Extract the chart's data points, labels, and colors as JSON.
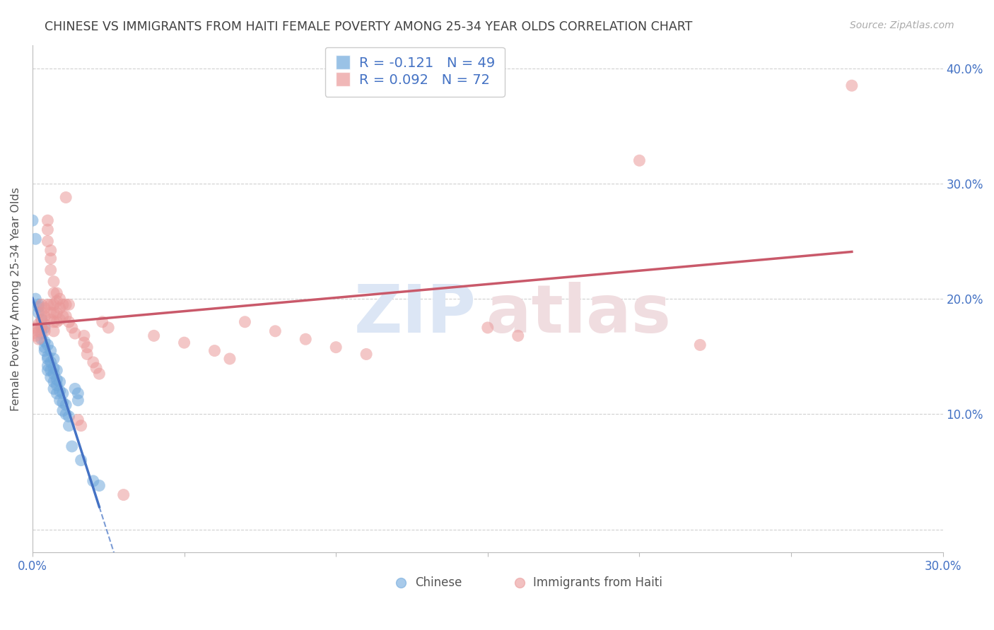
{
  "title": "CHINESE VS IMMIGRANTS FROM HAITI FEMALE POVERTY AMONG 25-34 YEAR OLDS CORRELATION CHART",
  "source": "Source: ZipAtlas.com",
  "ylabel": "Female Poverty Among 25-34 Year Olds",
  "xlim": [
    0.0,
    0.3
  ],
  "ylim": [
    -0.02,
    0.42
  ],
  "ytick_positions": [
    0.0,
    0.1,
    0.2,
    0.3,
    0.4
  ],
  "xtick_positions": [
    0.0,
    0.05,
    0.1,
    0.15,
    0.2,
    0.25,
    0.3
  ],
  "chinese_color": "#6fa8dc",
  "haiti_color": "#ea9999",
  "chinese_R": -0.121,
  "chinese_N": 49,
  "haiti_R": 0.092,
  "haiti_N": 72,
  "watermark_zip": "ZIP",
  "watermark_atlas": "atlas",
  "regression_chinese_color": "#4472c4",
  "regression_haiti_color": "#c9596a",
  "bg_color": "#ffffff",
  "grid_color": "#d0d0d0",
  "title_color": "#404040",
  "axis_label_color": "#555555",
  "blue_color": "#4472c4",
  "legend_border_color": "#cccccc",
  "chinese_points": [
    [
      0.0,
      0.268
    ],
    [
      0.001,
      0.252
    ],
    [
      0.001,
      0.2
    ],
    [
      0.002,
      0.195
    ],
    [
      0.002,
      0.193
    ],
    [
      0.002,
      0.188
    ],
    [
      0.003,
      0.182
    ],
    [
      0.003,
      0.175
    ],
    [
      0.003,
      0.17
    ],
    [
      0.003,
      0.165
    ],
    [
      0.004,
      0.175
    ],
    [
      0.004,
      0.163
    ],
    [
      0.004,
      0.158
    ],
    [
      0.004,
      0.155
    ],
    [
      0.005,
      0.16
    ],
    [
      0.005,
      0.15
    ],
    [
      0.005,
      0.148
    ],
    [
      0.005,
      0.142
    ],
    [
      0.005,
      0.138
    ],
    [
      0.006,
      0.155
    ],
    [
      0.006,
      0.145
    ],
    [
      0.006,
      0.138
    ],
    [
      0.006,
      0.132
    ],
    [
      0.007,
      0.148
    ],
    [
      0.007,
      0.14
    ],
    [
      0.007,
      0.135
    ],
    [
      0.007,
      0.128
    ],
    [
      0.007,
      0.122
    ],
    [
      0.008,
      0.138
    ],
    [
      0.008,
      0.13
    ],
    [
      0.008,
      0.125
    ],
    [
      0.008,
      0.118
    ],
    [
      0.009,
      0.128
    ],
    [
      0.009,
      0.12
    ],
    [
      0.009,
      0.112
    ],
    [
      0.01,
      0.118
    ],
    [
      0.01,
      0.11
    ],
    [
      0.01,
      0.103
    ],
    [
      0.011,
      0.108
    ],
    [
      0.011,
      0.1
    ],
    [
      0.012,
      0.098
    ],
    [
      0.012,
      0.09
    ],
    [
      0.013,
      0.072
    ],
    [
      0.014,
      0.122
    ],
    [
      0.015,
      0.118
    ],
    [
      0.015,
      0.112
    ],
    [
      0.016,
      0.06
    ],
    [
      0.02,
      0.042
    ],
    [
      0.022,
      0.038
    ]
  ],
  "haiti_points": [
    [
      0.0,
      0.17
    ],
    [
      0.001,
      0.175
    ],
    [
      0.001,
      0.168
    ],
    [
      0.002,
      0.178
    ],
    [
      0.002,
      0.172
    ],
    [
      0.002,
      0.165
    ],
    [
      0.003,
      0.195
    ],
    [
      0.003,
      0.188
    ],
    [
      0.003,
      0.182
    ],
    [
      0.003,
      0.175
    ],
    [
      0.004,
      0.192
    ],
    [
      0.004,
      0.185
    ],
    [
      0.004,
      0.178
    ],
    [
      0.004,
      0.172
    ],
    [
      0.005,
      0.268
    ],
    [
      0.005,
      0.26
    ],
    [
      0.005,
      0.25
    ],
    [
      0.005,
      0.195
    ],
    [
      0.006,
      0.242
    ],
    [
      0.006,
      0.235
    ],
    [
      0.006,
      0.225
    ],
    [
      0.006,
      0.195
    ],
    [
      0.006,
      0.188
    ],
    [
      0.006,
      0.182
    ],
    [
      0.007,
      0.215
    ],
    [
      0.007,
      0.205
    ],
    [
      0.007,
      0.195
    ],
    [
      0.007,
      0.188
    ],
    [
      0.007,
      0.18
    ],
    [
      0.007,
      0.172
    ],
    [
      0.008,
      0.205
    ],
    [
      0.008,
      0.198
    ],
    [
      0.008,
      0.188
    ],
    [
      0.008,
      0.18
    ],
    [
      0.009,
      0.2
    ],
    [
      0.009,
      0.192
    ],
    [
      0.009,
      0.182
    ],
    [
      0.01,
      0.195
    ],
    [
      0.01,
      0.185
    ],
    [
      0.011,
      0.288
    ],
    [
      0.011,
      0.195
    ],
    [
      0.011,
      0.185
    ],
    [
      0.012,
      0.195
    ],
    [
      0.012,
      0.18
    ],
    [
      0.013,
      0.175
    ],
    [
      0.014,
      0.17
    ],
    [
      0.015,
      0.095
    ],
    [
      0.016,
      0.09
    ],
    [
      0.017,
      0.168
    ],
    [
      0.017,
      0.162
    ],
    [
      0.018,
      0.158
    ],
    [
      0.018,
      0.152
    ],
    [
      0.02,
      0.145
    ],
    [
      0.021,
      0.14
    ],
    [
      0.022,
      0.135
    ],
    [
      0.023,
      0.18
    ],
    [
      0.025,
      0.175
    ],
    [
      0.03,
      0.03
    ],
    [
      0.04,
      0.168
    ],
    [
      0.05,
      0.162
    ],
    [
      0.06,
      0.155
    ],
    [
      0.065,
      0.148
    ],
    [
      0.07,
      0.18
    ],
    [
      0.08,
      0.172
    ],
    [
      0.09,
      0.165
    ],
    [
      0.1,
      0.158
    ],
    [
      0.11,
      0.152
    ],
    [
      0.15,
      0.175
    ],
    [
      0.16,
      0.168
    ],
    [
      0.2,
      0.32
    ],
    [
      0.22,
      0.16
    ],
    [
      0.27,
      0.385
    ]
  ]
}
